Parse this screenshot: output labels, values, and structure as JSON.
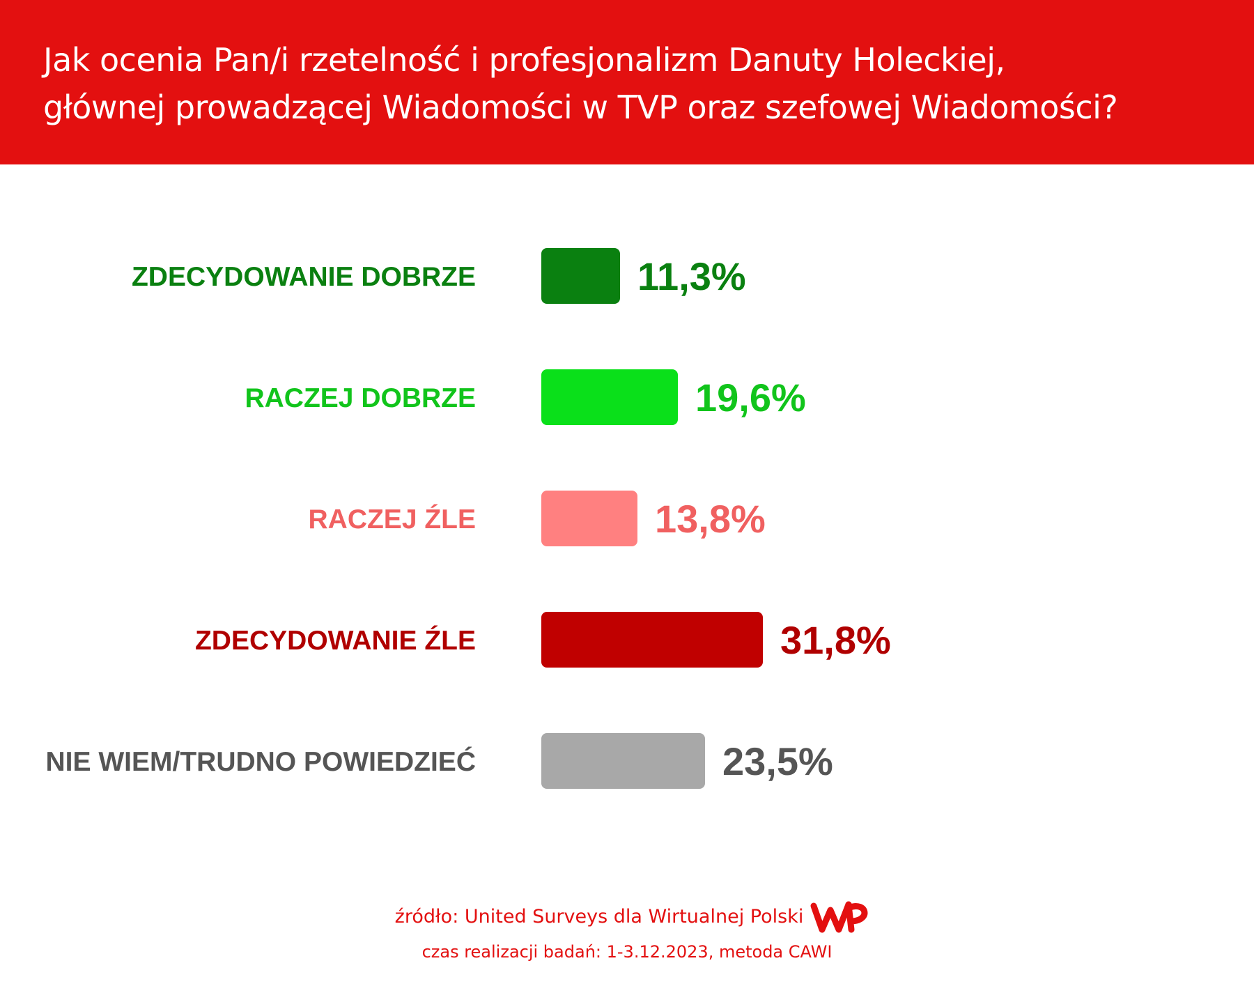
{
  "header": {
    "title_line1": "Jak ocenia Pan/i rzetelność i profesjonalizm Danuty Holeckiej,",
    "title_line2": "głównej prowadzącej Wiadomości w TVP oraz szefowej Wiadomości?"
  },
  "chart_data": {
    "type": "bar",
    "orientation": "horizontal",
    "categories": [
      "ZDECYDOWANIE DOBRZE",
      "RACZEJ DOBRZE",
      "RACZEJ ŹLE",
      "ZDECYDOWANIE ŹLE",
      "NIE WIEM/TRUDNO POWIEDZIEĆ"
    ],
    "values": [
      11.3,
      19.6,
      13.8,
      31.8,
      23.5
    ],
    "value_labels": [
      "11,3%",
      "19,6%",
      "13,8%",
      "31,8%",
      "23,5%"
    ],
    "bar_colors": [
      "#0a8010",
      "#0ae01a",
      "#ff8080",
      "#c00000",
      "#a8a8a8"
    ],
    "text_colors": [
      "#0a8010",
      "#11c41b",
      "#f06060",
      "#b00000",
      "#555555"
    ],
    "grid": false,
    "legend": "none"
  },
  "footer": {
    "source": "źródło: United Surveys dla Wirtualnej Polski",
    "method": "czas realizacji badań: 1-3.12.2023, metoda CAWI",
    "logo": "WP"
  }
}
